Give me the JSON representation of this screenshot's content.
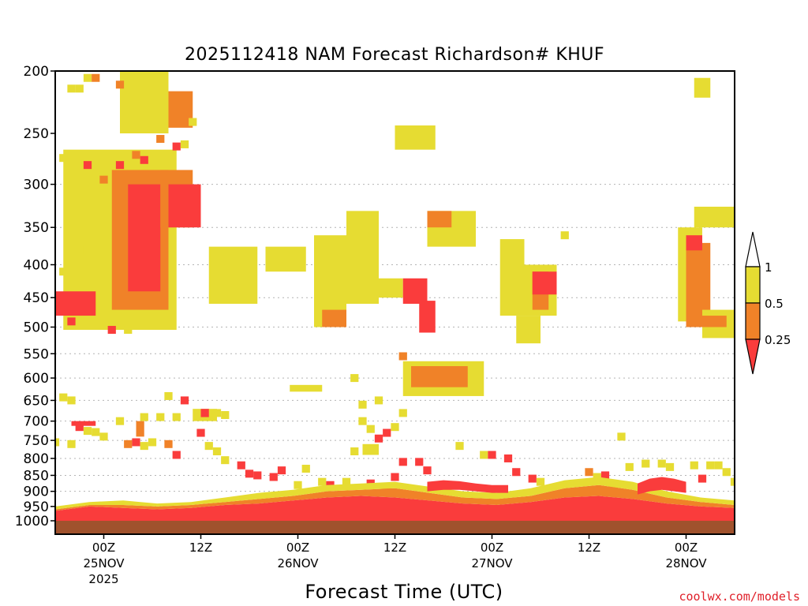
{
  "chart_data": {
    "type": "heatmap",
    "title": "2025112418 NAM Forecast Richardson# KHUF",
    "xlabel": "Forecast Time (UTC)",
    "ylabel": "",
    "credit": "coolwx.com/models",
    "y_axis": {
      "unit": "hPa",
      "scale": "log",
      "range": [
        1000,
        200
      ],
      "ticks": [
        200,
        250,
        300,
        350,
        400,
        450,
        500,
        550,
        600,
        650,
        700,
        750,
        800,
        850,
        900,
        950,
        1000
      ],
      "tick_labels": [
        "200",
        "250",
        "300",
        "350",
        "400",
        "450",
        "500",
        "550",
        "600",
        "650",
        "700",
        "750",
        "800",
        "850",
        "900",
        "950",
        "1000"
      ],
      "dotted_grid_at": [
        300,
        350,
        400,
        450,
        500,
        550,
        600,
        650,
        700,
        750,
        800,
        850,
        900,
        950
      ]
    },
    "x_axis": {
      "range": [
        "2025-11-24T18Z",
        "2025-11-28T06Z"
      ],
      "ticks": [
        {
          "time": "2025-11-25T00Z",
          "label": "00Z",
          "date_label": "25NOV",
          "year_label": "2025"
        },
        {
          "time": "2025-11-25T12Z",
          "label": "12Z",
          "date_label": "",
          "year_label": ""
        },
        {
          "time": "2025-11-26T00Z",
          "label": "00Z",
          "date_label": "26NOV",
          "year_label": ""
        },
        {
          "time": "2025-11-26T12Z",
          "label": "12Z",
          "date_label": "",
          "year_label": ""
        },
        {
          "time": "2025-11-27T00Z",
          "label": "00Z",
          "date_label": "27NOV",
          "year_label": ""
        },
        {
          "time": "2025-11-27T12Z",
          "label": "12Z",
          "date_label": "",
          "year_label": ""
        },
        {
          "time": "2025-11-28T00Z",
          "label": "00Z",
          "date_label": "28NOV",
          "year_label": ""
        }
      ]
    },
    "colorbar": {
      "labels": [
        "1",
        "0.5",
        "0.25"
      ],
      "levels": [
        {
          "range": "> 1",
          "color": "#ffffff"
        },
        {
          "range": "0.5 - 1",
          "color": "#e6dc32"
        },
        {
          "range": "0.25 - 0.5",
          "color": "#f08228"
        },
        {
          "range": "< 0.25",
          "color": "#fa3c3c"
        }
      ]
    },
    "colors": {
      "yellow": "#e6dc32",
      "orange": "#f08228",
      "red": "#fa3c3c",
      "ground": "#a0522d"
    },
    "surface_layer": {
      "pressure_top": 1000,
      "color": "ground"
    },
    "regions": [
      {
        "t0": "2025-11-24T19Z",
        "t1": "2025-11-25T09Z",
        "p_top": 265,
        "p_bot": 505,
        "c": "yellow"
      },
      {
        "t0": "2025-11-25T01Z",
        "t1": "2025-11-25T08Z",
        "p_top": 285,
        "p_bot": 470,
        "c": "orange"
      },
      {
        "t0": "2025-11-25T03Z",
        "t1": "2025-11-25T07Z",
        "p_top": 300,
        "p_bot": 440,
        "c": "red"
      },
      {
        "t0": "2025-11-24T18Z",
        "t1": "2025-11-24T23Z",
        "p_top": 440,
        "p_bot": 480,
        "c": "red"
      },
      {
        "t0": "2025-11-25T07Z",
        "t1": "2025-11-25T11Z",
        "p_top": 285,
        "p_bot": 350,
        "c": "orange"
      },
      {
        "t0": "2025-11-25T08Z",
        "t1": "2025-11-25T12Z",
        "p_top": 300,
        "p_bot": 350,
        "c": "red"
      },
      {
        "t0": "2025-11-25T02Z",
        "t1": "2025-11-25T08Z",
        "p_top": 200,
        "p_bot": 250,
        "c": "yellow"
      },
      {
        "t0": "2025-11-25T08Z",
        "t1": "2025-11-25T11Z",
        "p_top": 215,
        "p_bot": 245,
        "c": "orange"
      },
      {
        "t0": "2025-11-25T13Z",
        "t1": "2025-11-25T19Z",
        "p_top": 375,
        "p_bot": 460,
        "c": "yellow"
      },
      {
        "t0": "2025-11-25T20Z",
        "t1": "2025-11-26T01Z",
        "p_top": 375,
        "p_bot": 410,
        "c": "yellow"
      },
      {
        "t0": "2025-11-26T02Z",
        "t1": "2025-11-26T06Z",
        "p_top": 360,
        "p_bot": 500,
        "c": "yellow"
      },
      {
        "t0": "2025-11-26T03Z",
        "t1": "2025-11-26T06Z",
        "p_top": 470,
        "p_bot": 500,
        "c": "orange"
      },
      {
        "t0": "2025-11-26T06Z",
        "t1": "2025-11-26T10Z",
        "p_top": 330,
        "p_bot": 460,
        "c": "yellow"
      },
      {
        "t0": "2025-11-26T09Z",
        "t1": "2025-11-26T13Z",
        "p_top": 420,
        "p_bot": 450,
        "c": "yellow"
      },
      {
        "t0": "2025-11-26T13Z",
        "t1": "2025-11-26T16Z",
        "p_top": 420,
        "p_bot": 460,
        "c": "red"
      },
      {
        "t0": "2025-11-26T15Z",
        "t1": "2025-11-26T17Z",
        "p_top": 455,
        "p_bot": 510,
        "c": "red"
      },
      {
        "t0": "2025-11-26T12Z",
        "t1": "2025-11-26T17Z",
        "p_top": 243,
        "p_bot": 265,
        "c": "yellow"
      },
      {
        "t0": "2025-11-26T16Z",
        "t1": "2025-11-26T22Z",
        "p_top": 330,
        "p_bot": 375,
        "c": "yellow"
      },
      {
        "t0": "2025-11-26T16Z",
        "t1": "2025-11-26T19Z",
        "p_top": 330,
        "p_bot": 350,
        "c": "orange"
      },
      {
        "t0": "2025-11-26T13Z",
        "t1": "2025-11-26T23Z",
        "p_top": 565,
        "p_bot": 640,
        "c": "yellow"
      },
      {
        "t0": "2025-11-26T14Z",
        "t1": "2025-11-26T21Z",
        "p_top": 575,
        "p_bot": 620,
        "c": "orange"
      },
      {
        "t0": "2025-11-25T23Z",
        "t1": "2025-11-26T03Z",
        "p_top": 615,
        "p_bot": 630,
        "c": "yellow"
      },
      {
        "t0": "2025-11-27T01Z",
        "t1": "2025-11-27T04Z",
        "p_top": 365,
        "p_bot": 480,
        "c": "yellow"
      },
      {
        "t0": "2025-11-27T04Z",
        "t1": "2025-11-27T08Z",
        "p_top": 400,
        "p_bot": 480,
        "c": "yellow"
      },
      {
        "t0": "2025-11-27T05Z",
        "t1": "2025-11-27T07Z",
        "p_top": 410,
        "p_bot": 470,
        "c": "orange"
      },
      {
        "t0": "2025-11-27T05Z",
        "t1": "2025-11-27T08Z",
        "p_top": 410,
        "p_bot": 445,
        "c": "red"
      },
      {
        "t0": "2025-11-27T03Z",
        "t1": "2025-11-27T06Z",
        "p_top": 480,
        "p_bot": 530,
        "c": "yellow"
      },
      {
        "t0": "2025-11-27T23Z",
        "t1": "2025-11-28T02Z",
        "p_top": 350,
        "p_bot": 490,
        "c": "yellow"
      },
      {
        "t0": "2025-11-28T00Z",
        "t1": "2025-11-28T03Z",
        "p_top": 370,
        "p_bot": 500,
        "c": "orange"
      },
      {
        "t0": "2025-11-28T00Z",
        "t1": "2025-11-28T02Z",
        "p_top": 360,
        "p_bot": 380,
        "c": "red"
      },
      {
        "t0": "2025-11-28T02Z",
        "t1": "2025-11-28T06Z",
        "p_top": 470,
        "p_bot": 520,
        "c": "yellow"
      },
      {
        "t0": "2025-11-28T02Z",
        "t1": "2025-11-28T05Z",
        "p_top": 480,
        "p_bot": 500,
        "c": "orange"
      },
      {
        "t0": "2025-11-28T01Z",
        "t1": "2025-11-28T06Z",
        "p_top": 325,
        "p_bot": 350,
        "c": "yellow"
      },
      {
        "t0": "2025-11-28T01Z",
        "t1": "2025-11-28T03Z",
        "p_top": 205,
        "p_bot": 220,
        "c": "yellow"
      },
      {
        "t0": "2025-11-24T20Z",
        "t1": "2025-11-24T23Z",
        "p_top": 700,
        "p_bot": 712,
        "c": "red"
      },
      {
        "t0": "2025-11-25T11Z",
        "t1": "2025-11-25T14Z",
        "p_top": 670,
        "p_bot": 700,
        "c": "yellow"
      },
      {
        "t0": "2025-11-25T12Z",
        "t1": "2025-11-25T13Z",
        "p_top": 670,
        "p_bot": 690,
        "c": "red"
      },
      {
        "t0": "2025-11-25T04Z",
        "t1": "2025-11-25T05Z",
        "p_top": 700,
        "p_bot": 740,
        "c": "orange"
      },
      {
        "t0": "2025-11-26T08Z",
        "t1": "2025-11-26T10Z",
        "p_top": 760,
        "p_bot": 790,
        "c": "yellow"
      }
    ],
    "low_level_bands": [
      {
        "t0": "2025-11-24T18Z",
        "t1": "2025-11-28T06Z",
        "p_top": [
          965,
          950,
          955,
          960,
          955,
          945,
          940,
          930,
          920,
          915,
          920,
          930,
          940,
          945,
          935,
          920,
          915,
          925,
          940,
          950,
          955
        ],
        "p_bot": 1000,
        "c": "red"
      },
      {
        "t0": "2025-11-24T18Z",
        "t1": "2025-11-28T06Z",
        "p_top": [
          960,
          945,
          945,
          950,
          945,
          935,
          925,
          915,
          900,
          895,
          890,
          905,
          920,
          925,
          915,
          890,
          880,
          895,
          920,
          935,
          945
        ],
        "p_bot": [
          965,
          950,
          955,
          960,
          955,
          945,
          940,
          930,
          920,
          915,
          920,
          930,
          940,
          945,
          935,
          920,
          915,
          925,
          940,
          950,
          955
        ],
        "c": "orange"
      },
      {
        "t0": "2025-11-24T18Z",
        "t1": "2025-11-28T06Z",
        "p_top": [
          950,
          935,
          930,
          940,
          935,
          920,
          905,
          895,
          880,
          875,
          870,
          885,
          900,
          905,
          890,
          865,
          855,
          870,
          900,
          920,
          930
        ],
        "p_bot": [
          960,
          945,
          945,
          950,
          945,
          935,
          925,
          915,
          900,
          895,
          890,
          905,
          920,
          925,
          915,
          890,
          880,
          895,
          920,
          935,
          945
        ],
        "c": "yellow"
      },
      {
        "t0": "2025-11-26T16Z",
        "t1": "2025-11-27T02Z",
        "p_top": [
          870,
          865,
          868,
          875,
          880,
          880
        ],
        "p_bot": [
          900,
          895,
          895,
          900,
          905,
          905
        ],
        "c": "red"
      },
      {
        "t0": "2025-11-27T18Z",
        "t1": "2025-11-28T00Z",
        "p_top": [
          875,
          860,
          855,
          860,
          870
        ],
        "p_bot": [
          910,
          900,
          895,
          900,
          905
        ],
        "c": "red"
      }
    ],
    "scatter_cells": [
      {
        "t": "2025-11-24T20Z",
        "p": 213,
        "c": "yellow"
      },
      {
        "t": "2025-11-24T21Z",
        "p": 213,
        "c": "yellow"
      },
      {
        "t": "2025-11-24T22Z",
        "p": 205,
        "c": "yellow"
      },
      {
        "t": "2025-11-24T23Z",
        "p": 205,
        "c": "orange"
      },
      {
        "t": "2025-11-25T02Z",
        "p": 210,
        "c": "orange"
      },
      {
        "t": "2025-11-25T05Z",
        "p": 275,
        "c": "red"
      },
      {
        "t": "2025-11-25T07Z",
        "p": 255,
        "c": "orange"
      },
      {
        "t": "2025-11-25T09Z",
        "p": 262,
        "c": "red"
      },
      {
        "t": "2025-11-25T10Z",
        "p": 260,
        "c": "yellow"
      },
      {
        "t": "2025-11-25T11Z",
        "p": 240,
        "c": "yellow"
      },
      {
        "t": "2025-11-24T19Z",
        "p": 273,
        "c": "yellow"
      },
      {
        "t": "2025-11-24T21Z",
        "p": 305,
        "c": "yellow"
      },
      {
        "t": "2025-11-24T22Z",
        "p": 280,
        "c": "red"
      },
      {
        "t": "2025-11-25T00Z",
        "p": 295,
        "c": "orange"
      },
      {
        "t": "2025-11-25T02Z",
        "p": 280,
        "c": "red"
      },
      {
        "t": "2025-11-25T04Z",
        "p": 270,
        "c": "orange"
      },
      {
        "t": "2025-11-24T19Z",
        "p": 410,
        "c": "yellow"
      },
      {
        "t": "2025-11-24T20Z",
        "p": 490,
        "c": "red"
      },
      {
        "t": "2025-11-24T21Z",
        "p": 380,
        "c": "yellow"
      },
      {
        "t": "2025-11-24T22Z",
        "p": 380,
        "c": "yellow"
      },
      {
        "t": "2025-11-25T01Z",
        "p": 505,
        "c": "red"
      },
      {
        "t": "2025-11-25T03Z",
        "p": 505,
        "c": "yellow"
      },
      {
        "t": "2025-11-24T19Z",
        "p": 643,
        "c": "yellow"
      },
      {
        "t": "2025-11-24T20Z",
        "p": 650,
        "c": "yellow"
      },
      {
        "t": "2025-11-24T21Z",
        "p": 715,
        "c": "red"
      },
      {
        "t": "2025-11-24T22Z",
        "p": 725,
        "c": "yellow"
      },
      {
        "t": "2025-11-24T23Z",
        "p": 728,
        "c": "yellow"
      },
      {
        "t": "2025-11-25T00Z",
        "p": 740,
        "c": "yellow"
      },
      {
        "t": "2025-11-24T18Z",
        "p": 755,
        "c": "yellow"
      },
      {
        "t": "2025-11-24T20Z",
        "p": 760,
        "c": "yellow"
      },
      {
        "t": "2025-11-25T03Z",
        "p": 760,
        "c": "orange"
      },
      {
        "t": "2025-11-25T04Z",
        "p": 755,
        "c": "red"
      },
      {
        "t": "2025-11-25T05Z",
        "p": 765,
        "c": "yellow"
      },
      {
        "t": "2025-11-25T06Z",
        "p": 755,
        "c": "yellow"
      },
      {
        "t": "2025-11-25T08Z",
        "p": 760,
        "c": "orange"
      },
      {
        "t": "2025-11-25T09Z",
        "p": 790,
        "c": "red"
      },
      {
        "t": "2025-11-25T02Z",
        "p": 700,
        "c": "yellow"
      },
      {
        "t": "2025-11-25T05Z",
        "p": 690,
        "c": "yellow"
      },
      {
        "t": "2025-11-25T07Z",
        "p": 690,
        "c": "yellow"
      },
      {
        "t": "2025-11-25T08Z",
        "p": 640,
        "c": "yellow"
      },
      {
        "t": "2025-11-25T09Z",
        "p": 690,
        "c": "yellow"
      },
      {
        "t": "2025-11-25T10Z",
        "p": 650,
        "c": "red"
      },
      {
        "t": "2025-11-25T14Z",
        "p": 680,
        "c": "yellow"
      },
      {
        "t": "2025-11-25T15Z",
        "p": 685,
        "c": "yellow"
      },
      {
        "t": "2025-11-25T12Z",
        "p": 730,
        "c": "red"
      },
      {
        "t": "2025-11-25T13Z",
        "p": 765,
        "c": "yellow"
      },
      {
        "t": "2025-11-25T14Z",
        "p": 780,
        "c": "yellow"
      },
      {
        "t": "2025-11-25T15Z",
        "p": 805,
        "c": "yellow"
      },
      {
        "t": "2025-11-25T17Z",
        "p": 820,
        "c": "red"
      },
      {
        "t": "2025-11-25T18Z",
        "p": 845,
        "c": "red"
      },
      {
        "t": "2025-11-25T19Z",
        "p": 850,
        "c": "red"
      },
      {
        "t": "2025-11-25T21Z",
        "p": 855,
        "c": "red"
      },
      {
        "t": "2025-11-25T22Z",
        "p": 835,
        "c": "red"
      },
      {
        "t": "2025-11-26T00Z",
        "p": 880,
        "c": "yellow"
      },
      {
        "t": "2025-11-26T01Z",
        "p": 830,
        "c": "yellow"
      },
      {
        "t": "2025-11-26T03Z",
        "p": 870,
        "c": "yellow"
      },
      {
        "t": "2025-11-26T04Z",
        "p": 880,
        "c": "red"
      },
      {
        "t": "2025-11-26T06Z",
        "p": 870,
        "c": "yellow"
      },
      {
        "t": "2025-11-26T07Z",
        "p": 780,
        "c": "yellow"
      },
      {
        "t": "2025-11-26T08Z",
        "p": 700,
        "c": "yellow"
      },
      {
        "t": "2025-11-26T09Z",
        "p": 720,
        "c": "yellow"
      },
      {
        "t": "2025-11-26T10Z",
        "p": 745,
        "c": "red"
      },
      {
        "t": "2025-11-26T11Z",
        "p": 730,
        "c": "red"
      },
      {
        "t": "2025-11-26T12Z",
        "p": 715,
        "c": "yellow"
      },
      {
        "t": "2025-11-26T13Z",
        "p": 680,
        "c": "yellow"
      },
      {
        "t": "2025-11-26T10Z",
        "p": 650,
        "c": "yellow"
      },
      {
        "t": "2025-11-26T08Z",
        "p": 660,
        "c": "yellow"
      },
      {
        "t": "2025-11-26T07Z",
        "p": 600,
        "c": "yellow"
      },
      {
        "t": "2025-11-26T12Z",
        "p": 855,
        "c": "red"
      },
      {
        "t": "2025-11-26T13Z",
        "p": 810,
        "c": "red"
      },
      {
        "t": "2025-11-26T15Z",
        "p": 810,
        "c": "red"
      },
      {
        "t": "2025-11-26T16Z",
        "p": 835,
        "c": "red"
      },
      {
        "t": "2025-11-26T11Z",
        "p": 895,
        "c": "red"
      },
      {
        "t": "2025-11-26T09Z",
        "p": 875,
        "c": "red"
      },
      {
        "t": "2025-11-26T13Z",
        "p": 555,
        "c": "orange"
      },
      {
        "t": "2025-11-26T20Z",
        "p": 765,
        "c": "yellow"
      },
      {
        "t": "2025-11-26T23Z",
        "p": 790,
        "c": "yellow"
      },
      {
        "t": "2025-11-27T00Z",
        "p": 790,
        "c": "red"
      },
      {
        "t": "2025-11-27T02Z",
        "p": 800,
        "c": "red"
      },
      {
        "t": "2025-11-27T03Z",
        "p": 840,
        "c": "red"
      },
      {
        "t": "2025-11-27T05Z",
        "p": 860,
        "c": "red"
      },
      {
        "t": "2025-11-27T06Z",
        "p": 870,
        "c": "yellow"
      },
      {
        "t": "2025-11-27T09Z",
        "p": 360,
        "c": "yellow"
      },
      {
        "t": "2025-11-27T12Z",
        "p": 840,
        "c": "orange"
      },
      {
        "t": "2025-11-27T13Z",
        "p": 855,
        "c": "yellow"
      },
      {
        "t": "2025-11-27T14Z",
        "p": 850,
        "c": "red"
      },
      {
        "t": "2025-11-27T16Z",
        "p": 740,
        "c": "yellow"
      },
      {
        "t": "2025-11-27T15Z",
        "p": 885,
        "c": "yellow"
      },
      {
        "t": "2025-11-27T17Z",
        "p": 825,
        "c": "yellow"
      },
      {
        "t": "2025-11-27T19Z",
        "p": 815,
        "c": "yellow"
      },
      {
        "t": "2025-11-27T21Z",
        "p": 815,
        "c": "yellow"
      },
      {
        "t": "2025-11-27T22Z",
        "p": 825,
        "c": "yellow"
      },
      {
        "t": "2025-11-28T01Z",
        "p": 820,
        "c": "yellow"
      },
      {
        "t": "2025-11-28T02Z",
        "p": 860,
        "c": "red"
      },
      {
        "t": "2025-11-28T03Z",
        "p": 820,
        "c": "yellow"
      },
      {
        "t": "2025-11-28T04Z",
        "p": 820,
        "c": "yellow"
      },
      {
        "t": "2025-11-28T05Z",
        "p": 840,
        "c": "yellow"
      },
      {
        "t": "2025-11-28T06Z",
        "p": 870,
        "c": "yellow"
      }
    ]
  }
}
